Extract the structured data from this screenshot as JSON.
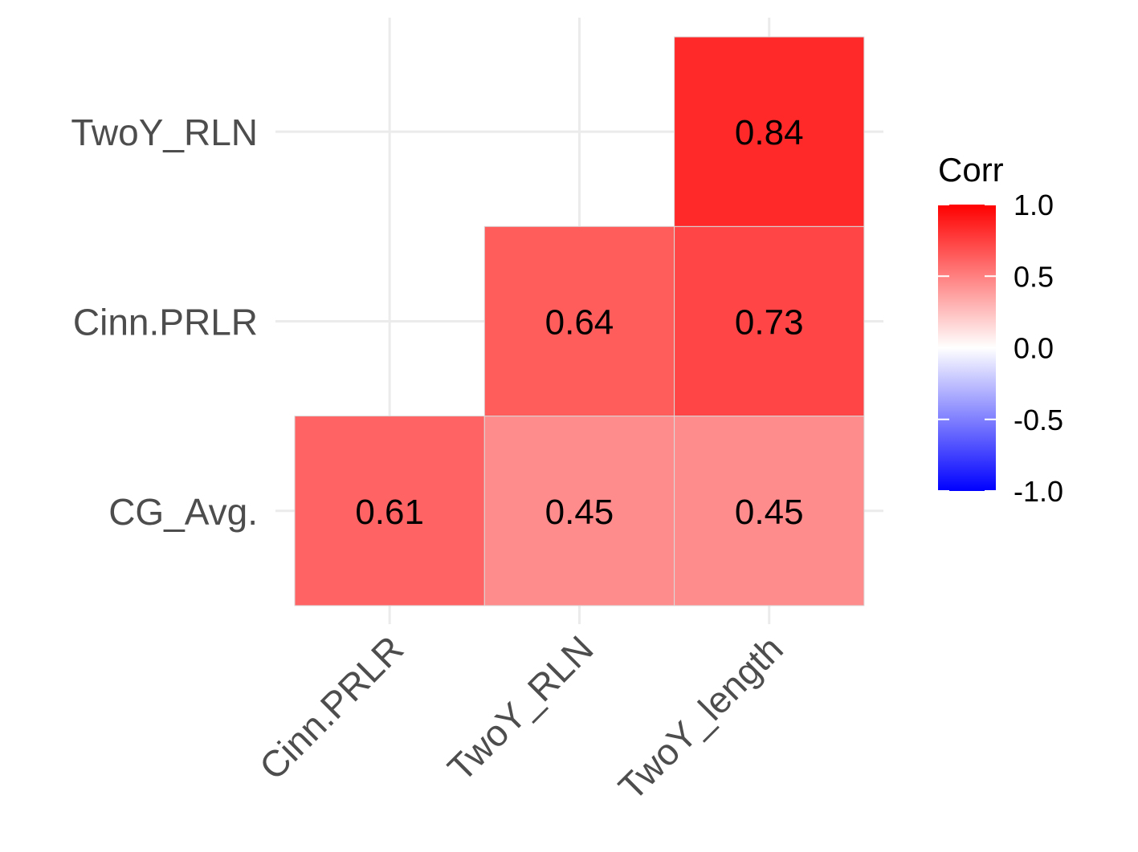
{
  "chart_data": {
    "type": "heatmap",
    "title": "",
    "xlabel": "",
    "ylabel": "",
    "x_categories": [
      "Cinn.PRLR",
      "TwoY_RLN",
      "TwoY_length"
    ],
    "y_categories": [
      "CG_Avg.",
      "Cinn.PRLR",
      "TwoY_RLN"
    ],
    "cells": [
      {
        "x": "Cinn.PRLR",
        "y": "CG_Avg.",
        "value": 0.61,
        "label": "0.61"
      },
      {
        "x": "TwoY_RLN",
        "y": "CG_Avg.",
        "value": 0.45,
        "label": "0.45"
      },
      {
        "x": "TwoY_length",
        "y": "CG_Avg.",
        "value": 0.45,
        "label": "0.45"
      },
      {
        "x": "TwoY_RLN",
        "y": "Cinn.PRLR",
        "value": 0.64,
        "label": "0.64"
      },
      {
        "x": "TwoY_length",
        "y": "Cinn.PRLR",
        "value": 0.73,
        "label": "0.73"
      },
      {
        "x": "TwoY_length",
        "y": "TwoY_RLN",
        "value": 0.84,
        "label": "0.84"
      }
    ],
    "legend": {
      "title": "Corr",
      "position": "right",
      "limits": [
        -1.0,
        1.0
      ],
      "ticks": [
        1.0,
        0.5,
        0.0,
        -0.5,
        -1.0
      ],
      "tick_labels": [
        "1.0",
        "0.5",
        "0.0",
        "-0.5",
        "-1.0"
      ],
      "colors": {
        "low": "#0000ff",
        "mid": "#ffffff",
        "high": "#ff0000"
      }
    },
    "grid": true
  }
}
